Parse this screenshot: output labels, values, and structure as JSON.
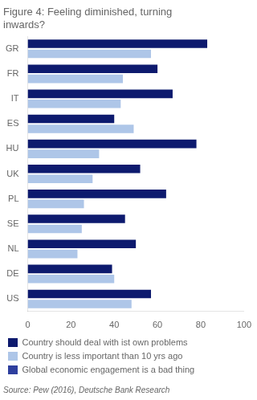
{
  "chart_data": {
    "type": "bar",
    "orientation": "horizontal",
    "title": [
      "Figure 4: Feeling diminished, turning",
      "inwards?"
    ],
    "categories": [
      "GR",
      "FR",
      "IT",
      "ES",
      "HU",
      "UK",
      "PL",
      "SE",
      "NL",
      "DE",
      "US"
    ],
    "series": [
      {
        "name": "Country should deal with ist own problems",
        "color": "#0d1a6e",
        "values": [
          83,
          60,
          67,
          40,
          78,
          52,
          64,
          45,
          50,
          39,
          57
        ]
      },
      {
        "name": "Country is less important than 10 yrs ago",
        "color": "#aec6e8",
        "values": [
          57,
          44,
          43,
          49,
          33,
          30,
          26,
          25,
          23,
          40,
          48
        ]
      },
      {
        "name": "Global economic engagement is a bad thing",
        "color": "#2e3f9e",
        "values": [
          null,
          null,
          null,
          null,
          null,
          null,
          null,
          null,
          null,
          null,
          null
        ]
      }
    ],
    "xlim": [
      0,
      100
    ],
    "xticks": [
      0,
      20,
      40,
      60,
      80,
      100
    ],
    "grid": false,
    "legend": "bottom",
    "annotations": [
      "Source: Pew (2016), Deutsche Bank Research"
    ]
  }
}
